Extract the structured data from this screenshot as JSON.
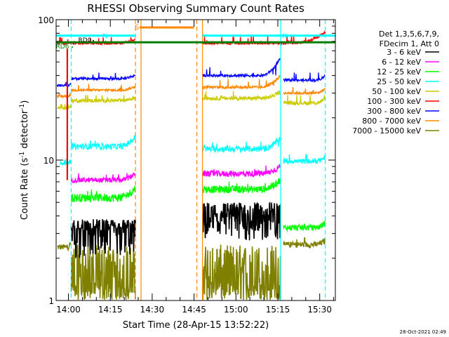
{
  "chart_data": {
    "type": "line",
    "title": "RHESSI Observing Summary Count Rates",
    "xlabel": "Start Time (28-Apr-15 13:52:22)",
    "ylabel_main": "Count Rate (s",
    "ylabel_sup1": "-1",
    "ylabel_mid": " detector",
    "ylabel_sup2": "-1",
    "ylabel_end": ")",
    "yscale": "log",
    "ylim": [
      1,
      100
    ],
    "y_ticks": [
      {
        "value": 1,
        "label": "1"
      },
      {
        "value": 10,
        "label": "10"
      },
      {
        "value": 100,
        "label": "100"
      }
    ],
    "xlim_minutes": [
      -4.4,
      95.6
    ],
    "x_ticks": [
      {
        "minutes": 0,
        "label": "14:00"
      },
      {
        "minutes": 15,
        "label": "14:15"
      },
      {
        "minutes": 30,
        "label": "14:30"
      },
      {
        "minutes": 45,
        "label": "14:45"
      },
      {
        "minutes": 60,
        "label": "15:00"
      },
      {
        "minutes": 75,
        "label": "15:15"
      },
      {
        "minutes": 90,
        "label": "15:30"
      }
    ],
    "legend_header": [
      "Det 1,3,5,6,7,9,",
      "FDecim 1, Att 0"
    ],
    "legend_position": "right",
    "series": [
      {
        "name": "3 - 6 keV",
        "color": "#000000",
        "segments": [
          {
            "x0": 1,
            "x1": 24,
            "value": 3.2,
            "noise": 0.12,
            "spiky": true,
            "lo": 2.0,
            "hi": 3.8
          },
          {
            "x0": 48,
            "x1": 76,
            "value": 4.0,
            "noise": 0.12,
            "spiky": true,
            "lo": 2.6,
            "hi": 5.0
          }
        ]
      },
      {
        "name": "6 - 12 keV",
        "color": "#ff00ff",
        "segments": [
          {
            "x0": 1,
            "x1": 24,
            "value": 7.2,
            "noise": 0.04,
            "lo": 6.6,
            "hi": 8.6
          },
          {
            "x0": 48,
            "x1": 76,
            "value": 8.0,
            "noise": 0.05,
            "lo": 7.2,
            "hi": 9.8
          }
        ]
      },
      {
        "name": "12 - 25 keV",
        "color": "#00ff00",
        "segments": [
          {
            "x0": 1,
            "x1": 24,
            "value": 5.4,
            "noise": 0.07,
            "lo": 4.6,
            "hi": 7.0
          },
          {
            "x0": 48,
            "x1": 76,
            "value": 6.2,
            "noise": 0.06,
            "lo": 5.2,
            "hi": 8.0
          },
          {
            "x0": 77,
            "x1": 92,
            "value": 3.3,
            "noise": 0.05,
            "lo": 2.9,
            "hi": 3.8
          }
        ]
      },
      {
        "name": "25 - 50 keV",
        "color": "#00ffff",
        "segments": [
          {
            "x0": -3,
            "x1": 1,
            "value": 9.5,
            "noise": 0.03,
            "lo": 8.8,
            "hi": 10.2
          },
          {
            "x0": 1,
            "x1": 24,
            "value": 12.5,
            "noise": 0.05,
            "lo": 11,
            "hi": 16
          },
          {
            "x0": 48,
            "x1": 76,
            "value": 12.0,
            "noise": 0.05,
            "lo": 10.5,
            "hi": 16
          },
          {
            "x0": 77,
            "x1": 92,
            "value": 9.8,
            "noise": 0.04,
            "lo": 9.0,
            "hi": 11
          }
        ]
      },
      {
        "name": "50 - 100 keV",
        "color": "#cccc00",
        "segments": [
          {
            "x0": -4,
            "x1": 1,
            "value": 23.5,
            "noise": 0.02,
            "lo": 22,
            "hi": 25
          },
          {
            "x0": 1,
            "x1": 24,
            "value": 26.5,
            "noise": 0.03,
            "lo": 25,
            "hi": 29
          },
          {
            "x0": 48,
            "x1": 76,
            "value": 27.5,
            "noise": 0.03,
            "lo": 25,
            "hi": 33
          },
          {
            "x0": 77,
            "x1": 92,
            "value": 25.5,
            "noise": 0.03,
            "lo": 24,
            "hi": 29
          }
        ]
      },
      {
        "name": "100 - 300 keV",
        "color": "#ff0000",
        "segments": [
          {
            "x0": -4,
            "x1": 24,
            "value": 68,
            "noise": 0.02,
            "lo": 62,
            "hi": 75
          },
          {
            "x0": 48,
            "x1": 92,
            "value": 68,
            "noise": 0.02,
            "lo": 56,
            "hi": 90
          }
        ]
      },
      {
        "name": "300 - 800 keV",
        "color": "#0000ff",
        "segments": [
          {
            "x0": -4,
            "x1": 1,
            "value": 34,
            "noise": 0.02,
            "lo": 32,
            "hi": 36
          },
          {
            "x0": 1,
            "x1": 24,
            "value": 38,
            "noise": 0.02,
            "lo": 35,
            "hi": 42
          },
          {
            "x0": 48,
            "x1": 76,
            "value": 40,
            "noise": 0.02,
            "lo": 36,
            "hi": 62
          },
          {
            "x0": 77,
            "x1": 92,
            "value": 37,
            "noise": 0.02,
            "lo": 33,
            "hi": 42
          }
        ]
      },
      {
        "name": "800 - 7000 keV",
        "color": "#ff8800",
        "segments": [
          {
            "x0": -4,
            "x1": 1,
            "value": 28.5,
            "noise": 0.02,
            "lo": 27,
            "hi": 30
          },
          {
            "x0": 1,
            "x1": 24,
            "value": 31.5,
            "noise": 0.02,
            "lo": 29,
            "hi": 35
          },
          {
            "x0": 48,
            "x1": 76,
            "value": 33,
            "noise": 0.02,
            "lo": 30,
            "hi": 45
          },
          {
            "x0": 77,
            "x1": 92,
            "value": 30,
            "noise": 0.02,
            "lo": 28,
            "hi": 34
          }
        ]
      },
      {
        "name": "7000 - 15000 keV",
        "color": "#808000",
        "segments": [
          {
            "x0": -4,
            "x1": 1,
            "value": 2.4,
            "noise": 0.05,
            "lo": 2.0,
            "hi": 2.7
          },
          {
            "x0": 1,
            "x1": 24,
            "value": 1.3,
            "noise": 0.3,
            "spiky": true,
            "lo": 1.0,
            "hi": 2.5
          },
          {
            "x0": 48,
            "x1": 76,
            "value": 1.3,
            "noise": 0.3,
            "spiky": true,
            "lo": 1.0,
            "hi": 2.5
          },
          {
            "x0": 77,
            "x1": 92,
            "value": 2.5,
            "noise": 0.05,
            "lo": 2.0,
            "hi": 2.8
          }
        ]
      }
    ],
    "vertical_lines": [
      {
        "minutes": 1,
        "color": "#00ffff",
        "style": "dashed"
      },
      {
        "minutes": 24,
        "color": "#ff8800",
        "style": "dashed"
      },
      {
        "minutes": 26,
        "color": "#ff8800",
        "style": "solid"
      },
      {
        "minutes": 46,
        "color": "#ff8800",
        "style": "dashed"
      },
      {
        "minutes": 48,
        "color": "#ff8800",
        "style": "solid"
      },
      {
        "minutes": 76,
        "color": "#00ffff",
        "style": "solid"
      },
      {
        "minutes": 92,
        "color": "#00ffff",
        "style": "dashed"
      }
    ],
    "flag_bars": [
      {
        "label": "N",
        "color": "#00ffff",
        "x0": -4.4,
        "x1": 24,
        "value": 77
      },
      {
        "label": "N",
        "color": "#00ffff",
        "x0": 48,
        "x1": 95.6,
        "value": 77
      },
      {
        "label": "S",
        "color": "#ff8800",
        "x0": 25,
        "x1": 45,
        "value": 88
      },
      {
        "label": "RD0",
        "color": "#000000",
        "x0": -4.4,
        "x1": 95.6,
        "value": 69
      },
      {
        "label": "RD6",
        "color": "#008000",
        "x0": -4.4,
        "x1": 95.6,
        "value": 69
      }
    ],
    "timestamp": "28-Oct-2021 02:49"
  }
}
